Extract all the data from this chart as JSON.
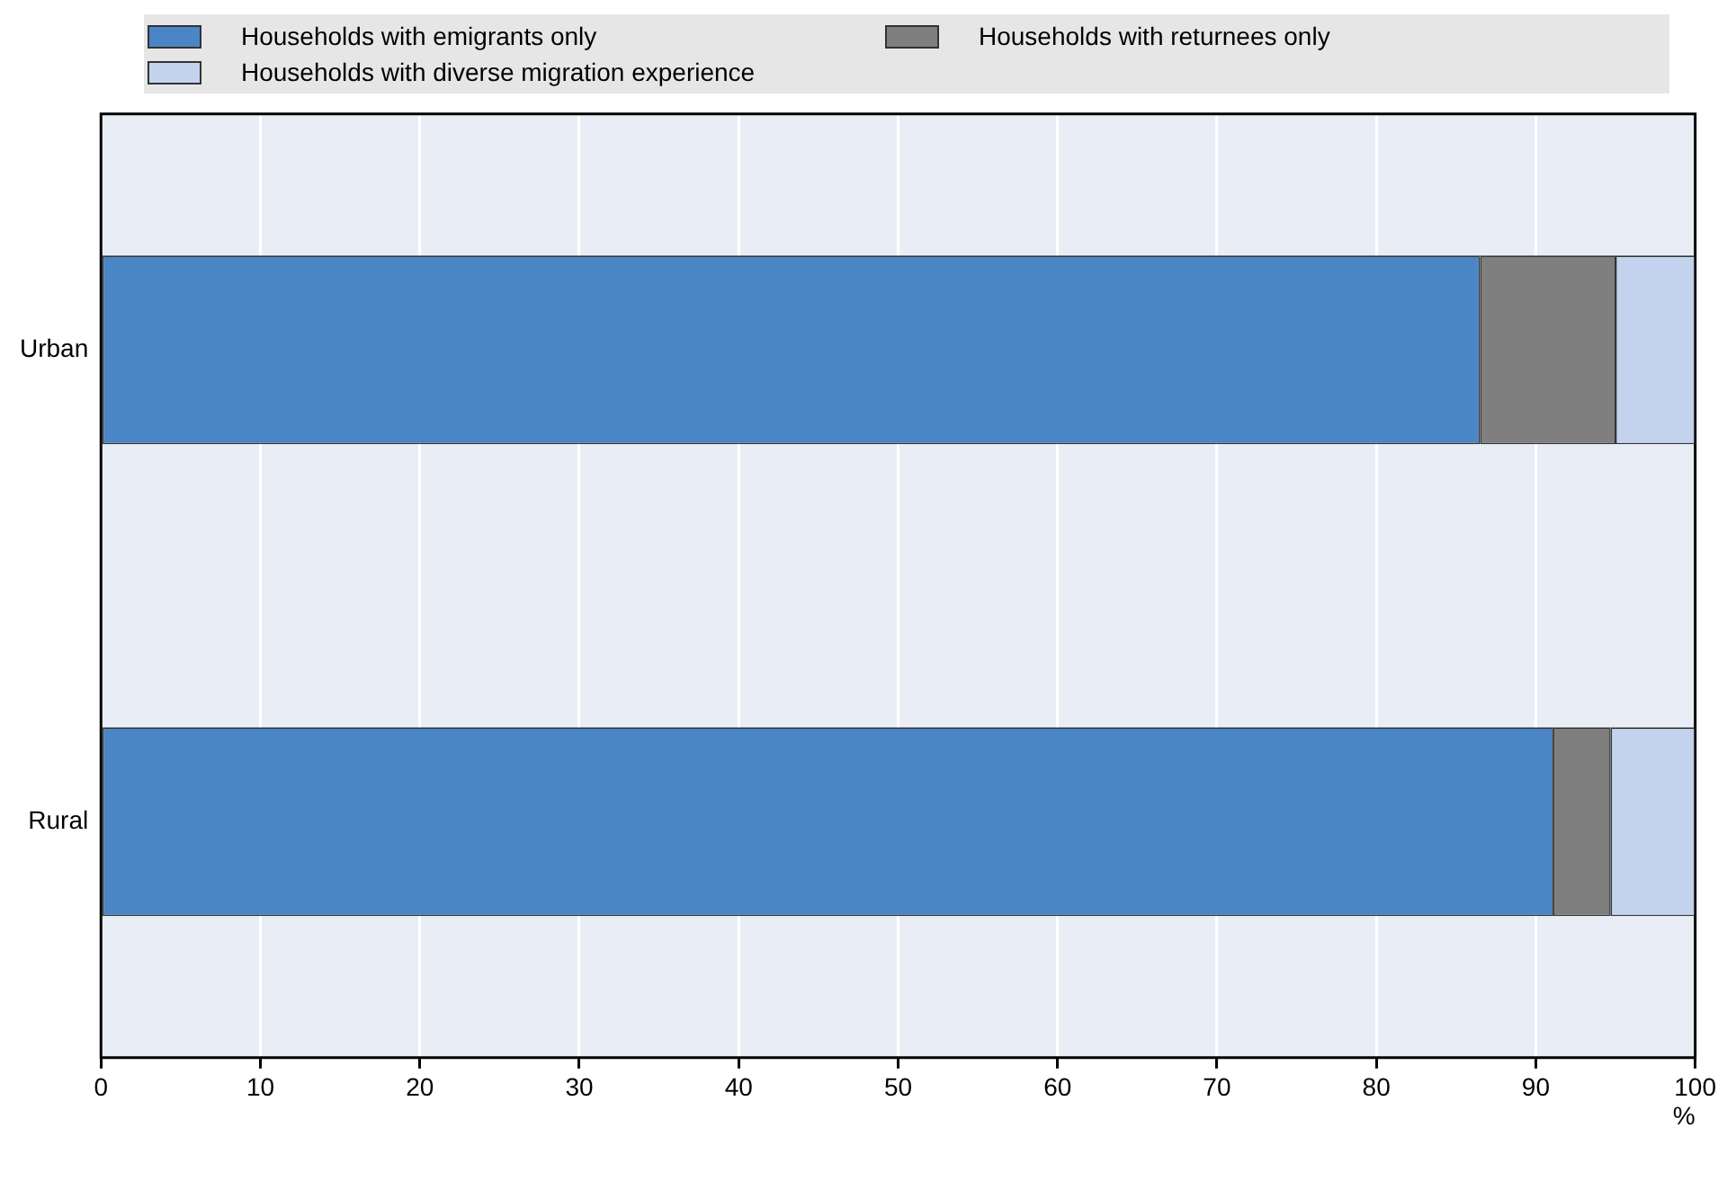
{
  "chart_data": {
    "type": "bar",
    "orientation": "horizontal",
    "stacked": true,
    "categories": [
      "Urban",
      "Rural"
    ],
    "series": [
      {
        "name": "Households with emigrants only",
        "color": "#4a86c5",
        "values": [
          86.5,
          91.1
        ]
      },
      {
        "name": "Households with returnees only",
        "color": "#7f7f7f",
        "values": [
          8.5,
          3.6
        ]
      },
      {
        "name": "Households with diverse migration experience",
        "color": "#c3d3ee",
        "values": [
          5.0,
          5.3
        ]
      }
    ],
    "xlim": [
      0,
      100
    ],
    "xticks": [
      0,
      10,
      20,
      30,
      40,
      50,
      60,
      70,
      80,
      90,
      100
    ],
    "xlabel": "%",
    "grid": "x",
    "legend": "top"
  }
}
